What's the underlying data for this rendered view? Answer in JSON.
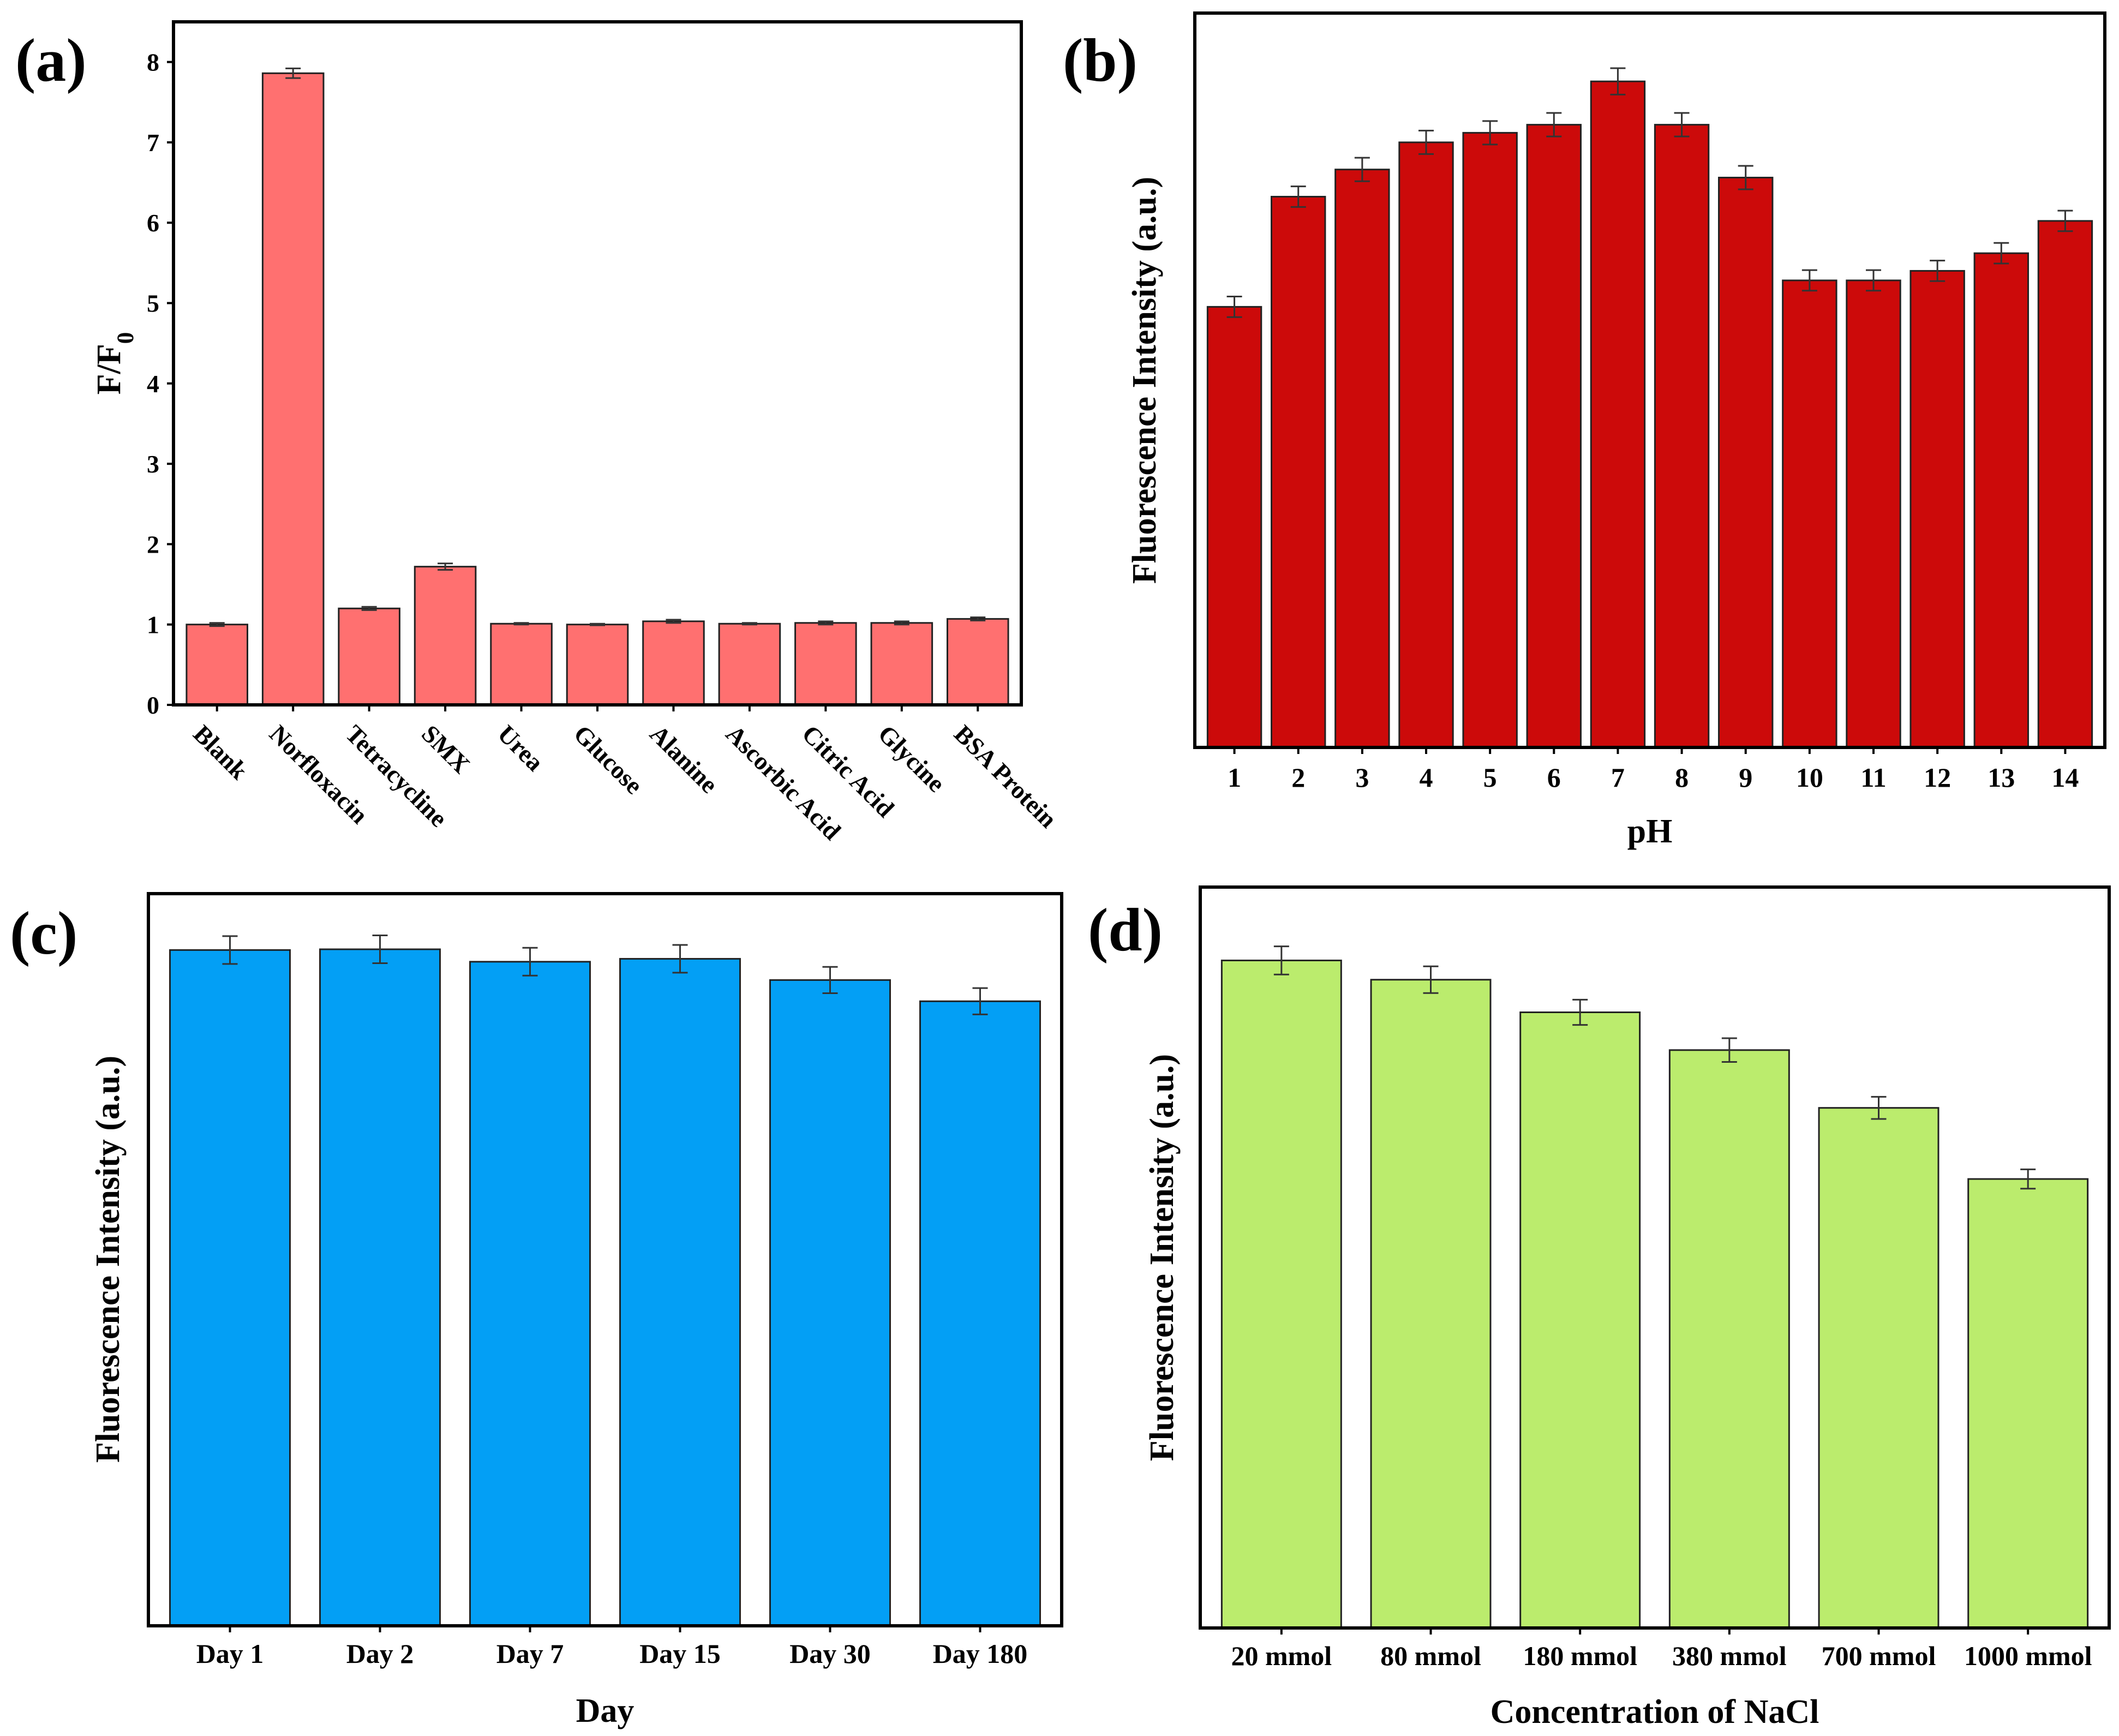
{
  "chart_data": [
    {
      "panel_label": "(a)",
      "type": "bar",
      "title": "",
      "xlabel": "",
      "ylabel": "F/F",
      "ylabel_sub": "0",
      "ylim": [
        0,
        8.5
      ],
      "yticks": [
        0,
        1,
        2,
        3,
        4,
        5,
        6,
        7,
        8
      ],
      "show_yticks": true,
      "rotate_xlabels": true,
      "bar_color": "#ff7070",
      "grid": false,
      "categories": [
        "Blank",
        "Norfloxacin",
        "Tetracycline",
        "SMX",
        "Urea",
        "Glucose",
        "Alanine",
        "Ascorbic Acid",
        "Citric Acid",
        "Glycine",
        "BSA Protein"
      ],
      "values": [
        1.0,
        7.86,
        1.2,
        1.72,
        1.01,
        1.0,
        1.04,
        1.01,
        1.02,
        1.02,
        1.07
      ],
      "errors": [
        0.02,
        0.06,
        0.02,
        0.04,
        0.01,
        0.01,
        0.02,
        0.01,
        0.02,
        0.02,
        0.02
      ]
    },
    {
      "panel_label": "(b)",
      "type": "bar",
      "title": "",
      "xlabel": "pH",
      "ylabel": "Fluorescence Intensity (a.u.)",
      "ylim": [
        0,
        100
      ],
      "show_yticks": false,
      "rotate_xlabels": false,
      "bar_color": "#cc0a0a",
      "grid": false,
      "categories": [
        "1",
        "2",
        "3",
        "4",
        "5",
        "6",
        "7",
        "8",
        "9",
        "10",
        "11",
        "12",
        "13",
        "14"
      ],
      "values": [
        60,
        75,
        78.7,
        82.4,
        83.7,
        84.8,
        90.7,
        84.8,
        77.6,
        63.6,
        63.6,
        64.9,
        67.3,
        71.7
      ],
      "errors": [
        1.4,
        1.4,
        1.6,
        1.6,
        1.6,
        1.6,
        1.8,
        1.6,
        1.6,
        1.4,
        1.4,
        1.4,
        1.4,
        1.4
      ]
    },
    {
      "panel_label": "(c)",
      "type": "bar",
      "title": "",
      "xlabel": "Day",
      "ylabel": "Fluorescence Intensity (a.u.)",
      "ylim": [
        0,
        100
      ],
      "show_yticks": false,
      "rotate_xlabels": false,
      "bar_color": "#039ff5",
      "grid": false,
      "categories": [
        "Day 1",
        "Day 2",
        "Day 7",
        "Day 15",
        "Day 30",
        "Day 180"
      ],
      "values": [
        92.3,
        92.4,
        90.7,
        91.1,
        88.2,
        85.3
      ],
      "errors": [
        1.9,
        1.9,
        1.9,
        1.9,
        1.8,
        1.8
      ]
    },
    {
      "panel_label": "(d)",
      "type": "bar",
      "title": "",
      "xlabel": "Concentration of NaCl",
      "ylabel": "Fluorescence Intensity (a.u.)",
      "ylim": [
        0,
        100
      ],
      "show_yticks": false,
      "rotate_xlabels": false,
      "bar_color": "#bbec6d",
      "grid": false,
      "categories": [
        "20 mmol",
        "80 mmol",
        "180 mmol",
        "380 mmol",
        "700 mmol",
        "1000 mmol"
      ],
      "values": [
        90.1,
        87.5,
        83.1,
        78.0,
        70.2,
        60.6
      ],
      "errors": [
        1.9,
        1.8,
        1.7,
        1.6,
        1.5,
        1.3
      ]
    }
  ]
}
